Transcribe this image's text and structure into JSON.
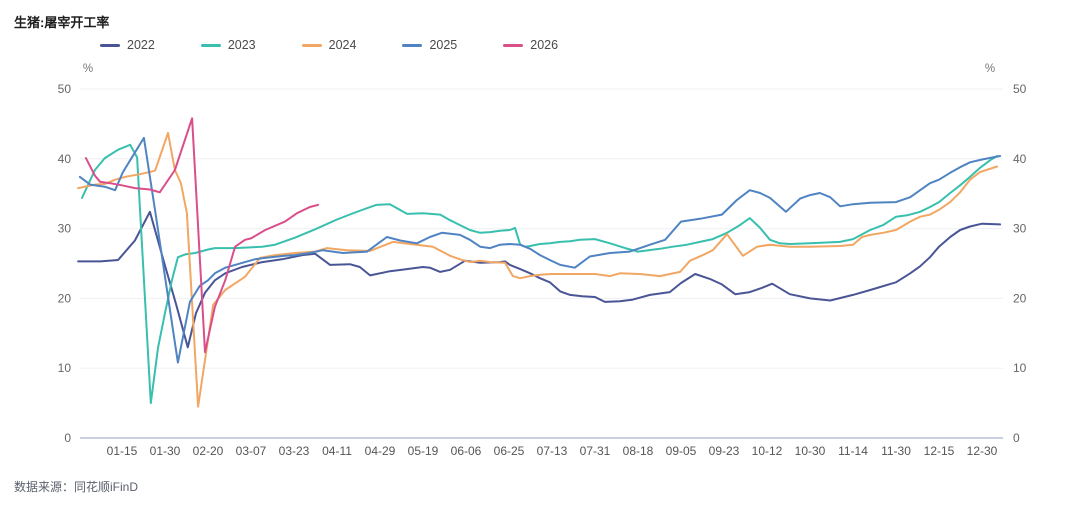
{
  "title": "生猪:屠宰开工率",
  "source": "数据来源：同花顺iFinD",
  "chart_data": {
    "type": "line",
    "title": "生猪:屠宰开工率",
    "ylabel_left": "%",
    "ylabel_right": "%",
    "ylim": [
      0,
      50
    ],
    "yticks": [
      0,
      10,
      20,
      30,
      40,
      50
    ],
    "grid": true,
    "legend_position": "top-left",
    "x_categories": [
      "01-15",
      "01-30",
      "02-20",
      "03-07",
      "03-23",
      "04-11",
      "04-29",
      "05-19",
      "06-06",
      "06-25",
      "07-13",
      "07-31",
      "08-18",
      "09-05",
      "09-23",
      "10-12",
      "10-30",
      "11-14",
      "11-30",
      "12-15",
      "12-30"
    ],
    "x_encoding": "fractional index into x_categories (0 = 01-15, 20 = 12-30, negatives = before first tick)",
    "colors": {
      "2022": "#4a5596",
      "2023": "#38bfad",
      "2024": "#f1a763",
      "2025": "#4f83c2",
      "2026": "#d94f8a"
    },
    "series": [
      {
        "name": "2022",
        "color": "#4a5596",
        "points": [
          [
            -1.02,
            25.3
          ],
          [
            -0.5,
            25.3
          ],
          [
            -0.09,
            25.5
          ],
          [
            0.3,
            28.3
          ],
          [
            0.65,
            32.4
          ],
          [
            1.0,
            24.7
          ],
          [
            1.26,
            19.1
          ],
          [
            1.53,
            13.0
          ],
          [
            1.72,
            17.9
          ],
          [
            1.93,
            20.8
          ],
          [
            2.16,
            22.6
          ],
          [
            2.4,
            23.6
          ],
          [
            2.79,
            24.5
          ],
          [
            3.26,
            25.2
          ],
          [
            3.72,
            25.6
          ],
          [
            4.19,
            26.2
          ],
          [
            4.49,
            26.4
          ],
          [
            4.84,
            24.8
          ],
          [
            5.3,
            24.9
          ],
          [
            5.53,
            24.5
          ],
          [
            5.77,
            23.3
          ],
          [
            6.23,
            23.9
          ],
          [
            6.51,
            24.1
          ],
          [
            7.0,
            24.5
          ],
          [
            7.16,
            24.4
          ],
          [
            7.4,
            23.8
          ],
          [
            7.63,
            24.1
          ],
          [
            7.98,
            25.4
          ],
          [
            8.33,
            25.1
          ],
          [
            8.79,
            25.2
          ],
          [
            8.91,
            25.3
          ],
          [
            9.02,
            24.8
          ],
          [
            9.26,
            24.2
          ],
          [
            9.49,
            23.6
          ],
          [
            9.72,
            22.9
          ],
          [
            9.95,
            22.3
          ],
          [
            10.19,
            21.0
          ],
          [
            10.42,
            20.5
          ],
          [
            10.7,
            20.3
          ],
          [
            11.0,
            20.2
          ],
          [
            11.23,
            19.5
          ],
          [
            11.58,
            19.6
          ],
          [
            11.86,
            19.8
          ],
          [
            12.28,
            20.5
          ],
          [
            12.74,
            20.9
          ],
          [
            13.0,
            22.2
          ],
          [
            13.33,
            23.5
          ],
          [
            13.67,
            22.8
          ],
          [
            13.95,
            22.0
          ],
          [
            14.26,
            20.6
          ],
          [
            14.6,
            20.9
          ],
          [
            14.88,
            21.5
          ],
          [
            15.12,
            22.1
          ],
          [
            15.53,
            20.6
          ],
          [
            16.0,
            20.0
          ],
          [
            16.47,
            19.7
          ],
          [
            17.0,
            20.5
          ],
          [
            17.4,
            21.2
          ],
          [
            18.0,
            22.3
          ],
          [
            18.33,
            23.6
          ],
          [
            18.56,
            24.6
          ],
          [
            18.79,
            25.9
          ],
          [
            19.0,
            27.4
          ],
          [
            19.26,
            28.8
          ],
          [
            19.49,
            29.8
          ],
          [
            19.72,
            30.3
          ],
          [
            20.0,
            30.7
          ],
          [
            20.42,
            30.6
          ]
        ]
      },
      {
        "name": "2023",
        "color": "#38bfad",
        "points": [
          [
            -0.93,
            34.4
          ],
          [
            -0.63,
            38.4
          ],
          [
            -0.4,
            40.1
          ],
          [
            -0.09,
            41.3
          ],
          [
            0.19,
            42.0
          ],
          [
            0.35,
            40.2
          ],
          [
            0.67,
            5.0
          ],
          [
            0.84,
            13.0
          ],
          [
            1.0,
            17.9
          ],
          [
            1.16,
            22.6
          ],
          [
            1.3,
            25.9
          ],
          [
            1.47,
            26.3
          ],
          [
            1.7,
            26.5
          ],
          [
            2.0,
            27.0
          ],
          [
            2.16,
            27.2
          ],
          [
            2.63,
            27.2
          ],
          [
            3.26,
            27.4
          ],
          [
            3.56,
            27.7
          ],
          [
            4.02,
            28.7
          ],
          [
            4.49,
            29.9
          ],
          [
            5.0,
            31.3
          ],
          [
            5.42,
            32.3
          ],
          [
            5.91,
            33.4
          ],
          [
            6.23,
            33.5
          ],
          [
            6.63,
            32.1
          ],
          [
            7.0,
            32.2
          ],
          [
            7.4,
            32.0
          ],
          [
            7.63,
            31.2
          ],
          [
            7.86,
            30.5
          ],
          [
            8.09,
            29.8
          ],
          [
            8.33,
            29.4
          ],
          [
            8.56,
            29.5
          ],
          [
            8.79,
            29.7
          ],
          [
            9.02,
            29.8
          ],
          [
            9.14,
            30.1
          ],
          [
            9.26,
            27.7
          ],
          [
            9.37,
            27.4
          ],
          [
            9.49,
            27.5
          ],
          [
            9.72,
            27.8
          ],
          [
            9.95,
            27.9
          ],
          [
            10.19,
            28.1
          ],
          [
            10.42,
            28.2
          ],
          [
            10.65,
            28.4
          ],
          [
            11.0,
            28.5
          ],
          [
            11.35,
            27.9
          ],
          [
            11.7,
            27.2
          ],
          [
            12.0,
            26.7
          ],
          [
            12.51,
            27.1
          ],
          [
            12.81,
            27.4
          ],
          [
            13.14,
            27.7
          ],
          [
            13.44,
            28.1
          ],
          [
            13.74,
            28.5
          ],
          [
            14.07,
            29.4
          ],
          [
            14.37,
            30.5
          ],
          [
            14.6,
            31.5
          ],
          [
            14.84,
            30.1
          ],
          [
            15.07,
            28.4
          ],
          [
            15.3,
            27.9
          ],
          [
            15.53,
            27.8
          ],
          [
            16.0,
            27.9
          ],
          [
            16.7,
            28.1
          ],
          [
            17.0,
            28.5
          ],
          [
            17.4,
            29.8
          ],
          [
            17.7,
            30.5
          ],
          [
            18.0,
            31.7
          ],
          [
            18.26,
            31.9
          ],
          [
            18.56,
            32.4
          ],
          [
            18.79,
            33.1
          ],
          [
            19.0,
            33.8
          ],
          [
            19.26,
            35.1
          ],
          [
            19.49,
            36.2
          ],
          [
            19.72,
            37.4
          ],
          [
            19.95,
            38.7
          ],
          [
            20.19,
            39.8
          ],
          [
            20.35,
            40.4
          ]
        ]
      },
      {
        "name": "2024",
        "color": "#f1a763",
        "points": [
          [
            -1.02,
            35.8
          ],
          [
            -0.63,
            36.3
          ],
          [
            -0.4,
            36.4
          ],
          [
            -0.16,
            37.0
          ],
          [
            0.07,
            37.4
          ],
          [
            0.42,
            37.8
          ],
          [
            0.77,
            38.3
          ],
          [
            1.07,
            43.7
          ],
          [
            1.23,
            38.4
          ],
          [
            1.37,
            36.5
          ],
          [
            1.51,
            32.2
          ],
          [
            1.77,
            4.5
          ],
          [
            2.12,
            19.1
          ],
          [
            2.4,
            21.2
          ],
          [
            2.86,
            23.1
          ],
          [
            3.21,
            25.8
          ],
          [
            3.56,
            26.2
          ],
          [
            4.02,
            26.5
          ],
          [
            4.49,
            26.7
          ],
          [
            4.77,
            27.2
          ],
          [
            5.23,
            26.9
          ],
          [
            5.77,
            26.8
          ],
          [
            6.3,
            28.1
          ],
          [
            6.7,
            27.8
          ],
          [
            7.23,
            27.4
          ],
          [
            7.63,
            26.1
          ],
          [
            7.86,
            25.6
          ],
          [
            8.09,
            25.2
          ],
          [
            8.33,
            25.4
          ],
          [
            8.56,
            25.2
          ],
          [
            8.91,
            25.1
          ],
          [
            9.09,
            23.2
          ],
          [
            9.26,
            22.9
          ],
          [
            9.49,
            23.2
          ],
          [
            9.72,
            23.4
          ],
          [
            10.0,
            23.5
          ],
          [
            10.42,
            23.5
          ],
          [
            11.0,
            23.5
          ],
          [
            11.35,
            23.2
          ],
          [
            11.58,
            23.6
          ],
          [
            12.05,
            23.5
          ],
          [
            12.51,
            23.2
          ],
          [
            12.98,
            23.8
          ],
          [
            13.21,
            25.4
          ],
          [
            13.51,
            26.2
          ],
          [
            13.74,
            26.9
          ],
          [
            14.07,
            29.2
          ],
          [
            14.44,
            26.1
          ],
          [
            14.77,
            27.4
          ],
          [
            15.07,
            27.7
          ],
          [
            15.53,
            27.4
          ],
          [
            16.0,
            27.4
          ],
          [
            16.7,
            27.5
          ],
          [
            17.0,
            27.7
          ],
          [
            17.21,
            28.8
          ],
          [
            17.4,
            29.1
          ],
          [
            17.7,
            29.4
          ],
          [
            18.0,
            29.8
          ],
          [
            18.33,
            31.0
          ],
          [
            18.56,
            31.7
          ],
          [
            18.79,
            32.0
          ],
          [
            19.0,
            32.7
          ],
          [
            19.26,
            33.8
          ],
          [
            19.49,
            35.2
          ],
          [
            19.72,
            37.0
          ],
          [
            19.95,
            38.1
          ],
          [
            20.35,
            38.9
          ]
        ]
      },
      {
        "name": "2025",
        "color": "#4f83c2",
        "points": [
          [
            -0.98,
            37.4
          ],
          [
            -0.74,
            36.3
          ],
          [
            -0.4,
            36.0
          ],
          [
            -0.16,
            35.5
          ],
          [
            0.02,
            38.1
          ],
          [
            0.26,
            40.5
          ],
          [
            0.51,
            43.0
          ],
          [
            0.77,
            32.6
          ],
          [
            1.0,
            23.1
          ],
          [
            1.16,
            16.5
          ],
          [
            1.3,
            10.8
          ],
          [
            1.58,
            19.5
          ],
          [
            1.81,
            21.8
          ],
          [
            2.0,
            22.6
          ],
          [
            2.16,
            23.6
          ],
          [
            2.4,
            24.4
          ],
          [
            2.63,
            24.8
          ],
          [
            2.86,
            25.2
          ],
          [
            3.09,
            25.6
          ],
          [
            3.33,
            25.8
          ],
          [
            3.79,
            26.1
          ],
          [
            4.02,
            26.2
          ],
          [
            4.37,
            26.5
          ],
          [
            4.67,
            26.9
          ],
          [
            5.14,
            26.5
          ],
          [
            5.7,
            26.7
          ],
          [
            6.16,
            28.8
          ],
          [
            6.47,
            28.3
          ],
          [
            6.86,
            27.9
          ],
          [
            7.16,
            28.8
          ],
          [
            7.44,
            29.4
          ],
          [
            7.86,
            29.1
          ],
          [
            8.09,
            28.4
          ],
          [
            8.33,
            27.4
          ],
          [
            8.56,
            27.2
          ],
          [
            8.79,
            27.7
          ],
          [
            9.02,
            27.8
          ],
          [
            9.26,
            27.7
          ],
          [
            9.49,
            27.1
          ],
          [
            9.72,
            26.2
          ],
          [
            9.95,
            25.5
          ],
          [
            10.19,
            24.8
          ],
          [
            10.53,
            24.4
          ],
          [
            10.88,
            26.0
          ],
          [
            11.35,
            26.5
          ],
          [
            11.81,
            26.7
          ],
          [
            12.28,
            27.7
          ],
          [
            12.63,
            28.4
          ],
          [
            13.0,
            31.0
          ],
          [
            13.44,
            31.4
          ],
          [
            13.95,
            32.0
          ],
          [
            14.3,
            34.1
          ],
          [
            14.6,
            35.5
          ],
          [
            14.84,
            35.1
          ],
          [
            15.07,
            34.4
          ],
          [
            15.44,
            32.4
          ],
          [
            15.77,
            34.3
          ],
          [
            16.0,
            34.8
          ],
          [
            16.23,
            35.1
          ],
          [
            16.47,
            34.5
          ],
          [
            16.7,
            33.2
          ],
          [
            17.0,
            33.5
          ],
          [
            17.4,
            33.7
          ],
          [
            18.0,
            33.8
          ],
          [
            18.33,
            34.5
          ],
          [
            18.56,
            35.5
          ],
          [
            18.79,
            36.5
          ],
          [
            19.0,
            37.0
          ],
          [
            19.26,
            38.0
          ],
          [
            19.49,
            38.8
          ],
          [
            19.72,
            39.5
          ],
          [
            20.0,
            39.9
          ],
          [
            20.42,
            40.4
          ]
        ]
      },
      {
        "name": "2026",
        "color": "#d94f8a",
        "points": [
          [
            -0.84,
            40.1
          ],
          [
            -0.63,
            37.6
          ],
          [
            -0.51,
            36.7
          ],
          [
            -0.28,
            36.5
          ],
          [
            0.0,
            36.2
          ],
          [
            0.3,
            35.8
          ],
          [
            0.65,
            35.6
          ],
          [
            0.88,
            35.2
          ],
          [
            1.23,
            38.4
          ],
          [
            1.63,
            45.8
          ],
          [
            1.93,
            12.3
          ],
          [
            2.16,
            18.8
          ],
          [
            2.4,
            22.6
          ],
          [
            2.63,
            27.4
          ],
          [
            2.86,
            28.4
          ],
          [
            3.0,
            28.6
          ],
          [
            3.33,
            29.8
          ],
          [
            3.79,
            31.0
          ],
          [
            4.07,
            32.2
          ],
          [
            4.37,
            33.1
          ],
          [
            4.56,
            33.4
          ]
        ]
      }
    ]
  }
}
